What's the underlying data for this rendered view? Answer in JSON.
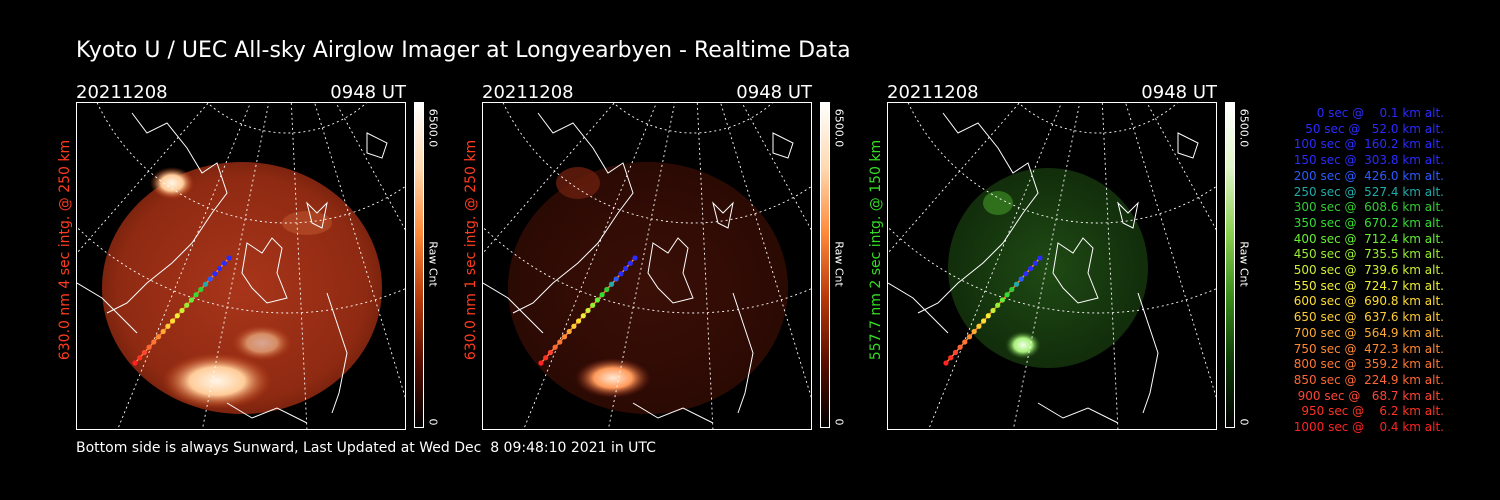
{
  "title": "Kyoto U / UEC All-sky Airglow Imager at Longyearbyen - Realtime Data",
  "panels": [
    {
      "date": "20211208",
      "time": "0948 UT",
      "vlabel": "630.0 nm 4 sec intg. @ 250 km",
      "vcolor": "#ff3b1e",
      "cbar_max": "6500.0",
      "cbar_unit": "Raw Cnt",
      "cbar_min": "0",
      "theme": "red-bright"
    },
    {
      "date": "20211208",
      "time": "0948 UT",
      "vlabel": "630.0 nm 1 sec intg. @ 250 km",
      "vcolor": "#ff3b1e",
      "cbar_max": "6500.0",
      "cbar_unit": "Raw Cnt",
      "cbar_min": "0",
      "theme": "red-dim"
    },
    {
      "date": "20211208",
      "time": "0948 UT",
      "vlabel": "557.7 nm 2 sec intg. @ 150 km",
      "vcolor": "#33dd22",
      "cbar_max": "6500.0",
      "cbar_unit": "Raw Cnt",
      "cbar_min": "0",
      "theme": "green"
    }
  ],
  "footer": "Bottom side is always Sunward, Last Updated at Wed Dec  8 09:48:10 2021 in UTC",
  "legend": [
    {
      "text": "0 sec @    0.1 km alt.",
      "color": "#2b2bff"
    },
    {
      "text": "50 sec @   52.0 km alt.",
      "color": "#2b2bff"
    },
    {
      "text": "100 sec @  160.2 km alt.",
      "color": "#2b2bff"
    },
    {
      "text": "150 sec @  303.8 km alt.",
      "color": "#2b2bff"
    },
    {
      "text": "200 sec @  426.0 km alt.",
      "color": "#2b5bff"
    },
    {
      "text": "250 sec @  527.4 km alt.",
      "color": "#22aaaa"
    },
    {
      "text": "300 sec @  608.6 km alt.",
      "color": "#33cc33"
    },
    {
      "text": "350 sec @  670.2 km alt.",
      "color": "#33dd33"
    },
    {
      "text": "400 sec @  712.4 km alt.",
      "color": "#66ee33"
    },
    {
      "text": "450 sec @  735.5 km alt.",
      "color": "#99ee33"
    },
    {
      "text": "500 sec @  739.6 km alt.",
      "color": "#ccee33"
    },
    {
      "text": "550 sec @  724.7 km alt.",
      "color": "#eeee33"
    },
    {
      "text": "600 sec @  690.8 km alt.",
      "color": "#ffdd33"
    },
    {
      "text": "650 sec @  637.6 km alt.",
      "color": "#ffcc33"
    },
    {
      "text": "700 sec @  564.9 km alt.",
      "color": "#ffaa33"
    },
    {
      "text": "750 sec @  472.3 km alt.",
      "color": "#ff8833"
    },
    {
      "text": "800 sec @  359.2 km alt.",
      "color": "#ff7733"
    },
    {
      "text": "850 sec @  224.9 km alt.",
      "color": "#ff6633"
    },
    {
      "text": "900 sec @   68.7 km alt.",
      "color": "#ff4433"
    },
    {
      "text": "950 sec @    6.2 km alt.",
      "color": "#ff3322"
    },
    {
      "text": "1000 sec @    0.4 km alt.",
      "color": "#ff2222"
    }
  ]
}
